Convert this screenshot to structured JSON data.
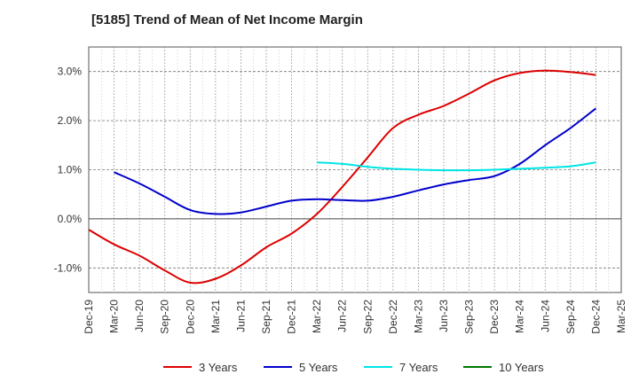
{
  "chart_data": {
    "type": "line",
    "title": "[5185]  Trend of Mean of Net Income Margin",
    "xlabel": "",
    "ylabel": "",
    "x": [
      "Dec-19",
      "Mar-20",
      "Jun-20",
      "Sep-20",
      "Dec-20",
      "Mar-21",
      "Jun-21",
      "Sep-21",
      "Dec-21",
      "Mar-22",
      "Jun-22",
      "Sep-22",
      "Dec-22",
      "Mar-23",
      "Jun-23",
      "Sep-23",
      "Dec-23",
      "Mar-24",
      "Jun-24",
      "Sep-24",
      "Dec-24",
      "Mar-25"
    ],
    "ylim": [
      -1.5,
      3.5
    ],
    "yticks": [
      -1.0,
      0.0,
      1.0,
      2.0,
      3.0
    ],
    "ytick_labels": [
      "-1.0%",
      "0.0%",
      "1.0%",
      "2.0%",
      "3.0%"
    ],
    "grid": true,
    "legend_position": "bottom",
    "series": [
      {
        "name": "3 Years",
        "color": "#dd0000",
        "values": [
          -0.22,
          -0.52,
          -0.75,
          -1.05,
          -1.3,
          -1.22,
          -0.95,
          -0.58,
          -0.3,
          0.1,
          0.65,
          1.25,
          1.85,
          2.12,
          2.3,
          2.55,
          2.82,
          2.97,
          3.02,
          2.99,
          2.93,
          null
        ]
      },
      {
        "name": "5 Years",
        "color": "#0000cc",
        "values": [
          null,
          0.95,
          0.72,
          0.45,
          0.18,
          0.1,
          0.13,
          0.25,
          0.37,
          0.4,
          0.38,
          0.37,
          0.45,
          0.58,
          0.7,
          0.79,
          0.87,
          1.12,
          1.5,
          1.85,
          2.25,
          null
        ]
      },
      {
        "name": "7 Years",
        "color": "#00e5e5",
        "values": [
          null,
          null,
          null,
          null,
          null,
          null,
          null,
          null,
          null,
          1.15,
          1.12,
          1.06,
          1.02,
          1.0,
          0.99,
          0.99,
          1.0,
          1.02,
          1.04,
          1.07,
          1.15,
          null
        ]
      },
      {
        "name": "10 Years",
        "color": "#007700",
        "values": [
          null,
          null,
          null,
          null,
          null,
          null,
          null,
          null,
          null,
          null,
          null,
          null,
          null,
          null,
          null,
          null,
          null,
          null,
          null,
          null,
          null,
          null
        ]
      }
    ]
  }
}
